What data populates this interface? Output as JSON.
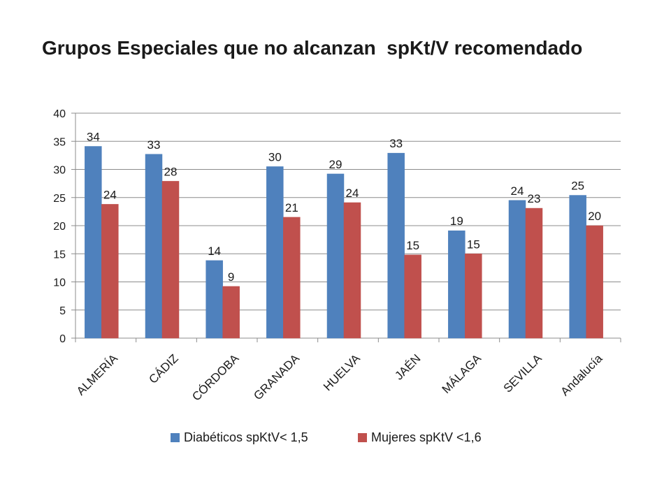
{
  "chart_data": {
    "type": "bar",
    "title": "Grupos Especiales que no alcanzan  spKt/V recomendado",
    "categories": [
      "ALMERÍA",
      "CÁDIZ",
      "CÓRDOBA",
      "GRANADA",
      "HUELVA",
      "JAÉN",
      "MÁLAGA",
      "SEVILLA",
      "Andalucía"
    ],
    "series": [
      {
        "name": "Diabéticos spKtV< 1,5",
        "color": "#4F81BD",
        "values": [
          34,
          33,
          14,
          30,
          29,
          33,
          19,
          24,
          25
        ],
        "bar_values": [
          34.1,
          32.7,
          13.8,
          30.5,
          29.2,
          32.9,
          19.1,
          24.5,
          25.4
        ]
      },
      {
        "name": "Mujeres spKtV <1,6",
        "color": "#C0504D",
        "values": [
          24,
          28,
          9,
          21,
          24,
          15,
          15,
          23,
          20
        ],
        "bar_values": [
          23.8,
          27.9,
          9.2,
          21.5,
          24.1,
          14.8,
          15.0,
          23.1,
          20.0
        ]
      }
    ],
    "xlabel": "",
    "ylabel": "",
    "ylim": [
      0,
      40
    ],
    "yticks": [
      0,
      5,
      10,
      15,
      20,
      25,
      30,
      35,
      40
    ],
    "grid": true,
    "legend_position": "bottom"
  }
}
